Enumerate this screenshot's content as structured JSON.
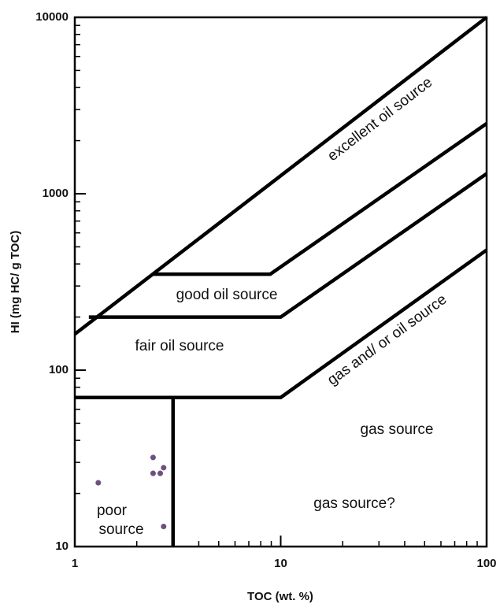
{
  "chart_data": {
    "type": "scatter",
    "x_label": "TOC (wt. %)",
    "y_label": "HI (mg HC/ g TOC)",
    "x_scale": "log",
    "y_scale": "log",
    "xlim": [
      1,
      100
    ],
    "ylim": [
      10,
      10000
    ],
    "xticks": [
      1,
      10,
      100
    ],
    "yticks": [
      10,
      100,
      1000,
      10000
    ],
    "series": [
      {
        "color": "#6e4f7e",
        "x": [
          1.3,
          2.4,
          2.7,
          2.4,
          2.6,
          2.7
        ],
        "values": [
          23,
          32,
          28,
          26,
          26,
          13
        ]
      }
    ],
    "lines": [
      {
        "x": [
          1,
          100
        ],
        "values": [
          160,
          10000
        ]
      },
      {
        "x": [
          2.4,
          8.9,
          100
        ],
        "values": [
          350,
          350,
          2500
        ]
      },
      {
        "x": [
          1.17,
          10,
          100
        ],
        "values": [
          200,
          200,
          1300
        ]
      },
      {
        "x": [
          1,
          10,
          100
        ],
        "values": [
          70,
          70,
          480
        ]
      },
      {
        "x": [
          3,
          3
        ],
        "values": [
          10,
          70
        ]
      }
    ],
    "line_color": "#000000",
    "annotations": [
      "excellent oil source",
      "good oil source",
      "fair oil source",
      "gas and/ or oil source",
      "gas source",
      "gas source?",
      [
        "poor",
        "source"
      ]
    ]
  }
}
